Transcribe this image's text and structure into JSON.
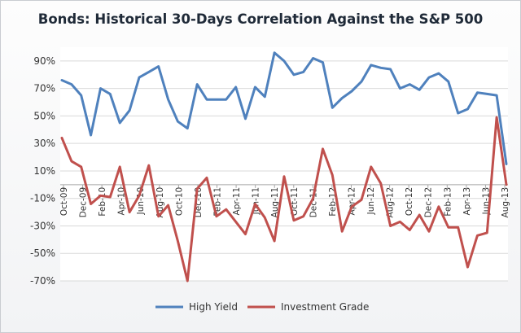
{
  "chart_data": {
    "type": "line",
    "title": "Bonds: Historical 30-Days Correlation Against the S&P 500",
    "xlabel": "",
    "ylabel": "",
    "ylim": [
      -70,
      100
    ],
    "yticks": [
      90,
      70,
      50,
      30,
      10,
      -10,
      -30,
      -50,
      -70
    ],
    "ytick_labels": [
      "90%",
      "70%",
      "50%",
      "30%",
      "10%",
      "-10%",
      "-30%",
      "-50%",
      "-70%"
    ],
    "xtick_labels": [
      "Oct-09",
      "Dec-09",
      "Feb-10",
      "Apr-10",
      "Jun-10",
      "Aug-10",
      "Oct-10",
      "Dec-10",
      "Feb-11",
      "Apr-11",
      "Jun-11",
      "Aug-11",
      "Oct-11",
      "Dec-11",
      "Feb-12",
      "Apr-12",
      "Jun-12",
      "Aug-12",
      "Oct-12",
      "Dec-12",
      "Feb-13",
      "Apr-13",
      "Jun-13",
      "Aug-13"
    ],
    "grid": true,
    "legend_position": "bottom",
    "series": [
      {
        "name": "High Yield",
        "color": "#4f81bd",
        "values": [
          76,
          73,
          65,
          36,
          70,
          66,
          45,
          54,
          78,
          82,
          86,
          62,
          46,
          41,
          73,
          62,
          62,
          62,
          71,
          48,
          71,
          64,
          96,
          90,
          80,
          82,
          92,
          89,
          56,
          63,
          68,
          75,
          87,
          85,
          84,
          70,
          73,
          69,
          78,
          81,
          75,
          52,
          55,
          67,
          66,
          65,
          15
        ]
      },
      {
        "name": "Investment Grade",
        "color": "#c0504d",
        "values": [
          34,
          17,
          13,
          -14,
          -8,
          -9,
          13,
          -20,
          -8,
          14,
          -23,
          -15,
          -41,
          -70,
          -3,
          5,
          -23,
          -18,
          -27,
          -36,
          -14,
          -24,
          -41,
          6,
          -26,
          -23,
          -10,
          26,
          7,
          -34,
          -16,
          -11,
          13,
          1,
          -30,
          -27,
          -33,
          -22,
          -34,
          -16,
          -31,
          -31,
          -60,
          -37,
          -35,
          49,
          0
        ]
      }
    ]
  }
}
